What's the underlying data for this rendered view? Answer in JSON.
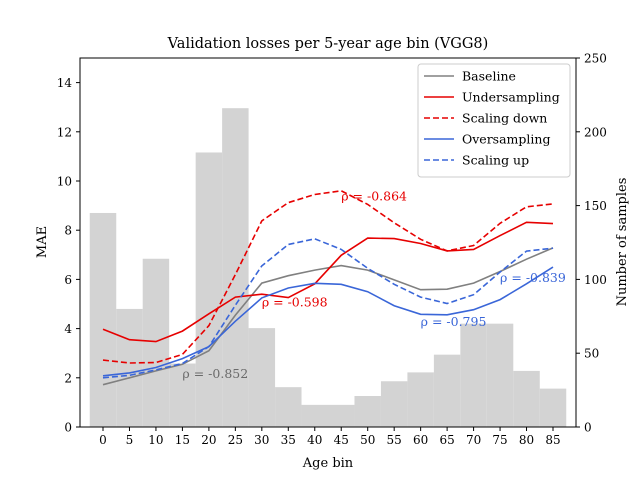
{
  "chart_data": {
    "type": "line",
    "title": "Validation losses per 5-year age bin (VGG8)",
    "xlabel": "Age bin",
    "ylabel": "MAE",
    "ylabel_right": "Number of samples",
    "categories": [
      "0",
      "5",
      "10",
      "15",
      "20",
      "25",
      "30",
      "35",
      "40",
      "45",
      "50",
      "55",
      "60",
      "65",
      "70",
      "75",
      "80",
      "85"
    ],
    "ylim": [
      0,
      15
    ],
    "yticks": [
      0,
      2,
      4,
      6,
      8,
      10,
      12,
      14
    ],
    "y2lim": [
      0,
      250
    ],
    "y2ticks": [
      0,
      50,
      100,
      150,
      200,
      250
    ],
    "grid": false,
    "legend_position": "top-right",
    "histogram": {
      "color": "#d3d3d3",
      "values": [
        145,
        80,
        114,
        43,
        186,
        216,
        67,
        27,
        15,
        15,
        21,
        31,
        37,
        49,
        70,
        70,
        38,
        26
      ]
    },
    "series": [
      {
        "name": "Baseline",
        "color": "#808080",
        "dash": "solid",
        "values": [
          1.72,
          2.0,
          2.28,
          2.55,
          3.1,
          4.55,
          5.85,
          6.15,
          6.38,
          6.56,
          6.38,
          5.98,
          5.58,
          5.6,
          5.85,
          6.32,
          6.82,
          7.28
        ]
      },
      {
        "name": "Undersampling",
        "color": "#e60000",
        "dash": "solid",
        "values": [
          3.97,
          3.55,
          3.47,
          3.9,
          4.6,
          5.28,
          5.4,
          5.26,
          5.82,
          6.98,
          7.68,
          7.66,
          7.46,
          7.16,
          7.22,
          7.78,
          8.32,
          8.27
        ]
      },
      {
        "name": "Scaling down",
        "color": "#e60000",
        "dash": "dashed",
        "values": [
          2.72,
          2.6,
          2.62,
          2.95,
          4.12,
          6.2,
          8.38,
          9.12,
          9.45,
          9.6,
          9.05,
          8.3,
          7.63,
          7.16,
          7.38,
          8.28,
          8.95,
          9.07
        ]
      },
      {
        "name": "Oversampling",
        "color": "#3a66d8",
        "dash": "solid",
        "values": [
          2.08,
          2.2,
          2.42,
          2.78,
          3.27,
          4.3,
          5.25,
          5.65,
          5.84,
          5.8,
          5.5,
          4.93,
          4.58,
          4.56,
          4.77,
          5.18,
          5.82,
          6.5
        ]
      },
      {
        "name": "Scaling up",
        "color": "#3a66d8",
        "dash": "dashed",
        "values": [
          2.0,
          2.1,
          2.32,
          2.58,
          3.27,
          4.95,
          6.55,
          7.42,
          7.65,
          7.22,
          6.45,
          5.8,
          5.28,
          5.02,
          5.38,
          6.3,
          7.15,
          7.27
        ]
      }
    ],
    "annotations": [
      {
        "text": "ρ = -0.852",
        "x": 15,
        "y": 2.0,
        "color": "#6b6b6b"
      },
      {
        "text": "ρ = -0.598",
        "x": 30,
        "y": 4.9,
        "color": "#e60000"
      },
      {
        "text": "ρ = -0.864",
        "x": 45,
        "y": 9.2,
        "color": "#e60000"
      },
      {
        "text": "ρ = -0.795",
        "x": 60,
        "y": 4.1,
        "color": "#3a66d8"
      },
      {
        "text": "ρ = -0.839",
        "x": 75,
        "y": 5.9,
        "color": "#3a66d8"
      }
    ]
  }
}
